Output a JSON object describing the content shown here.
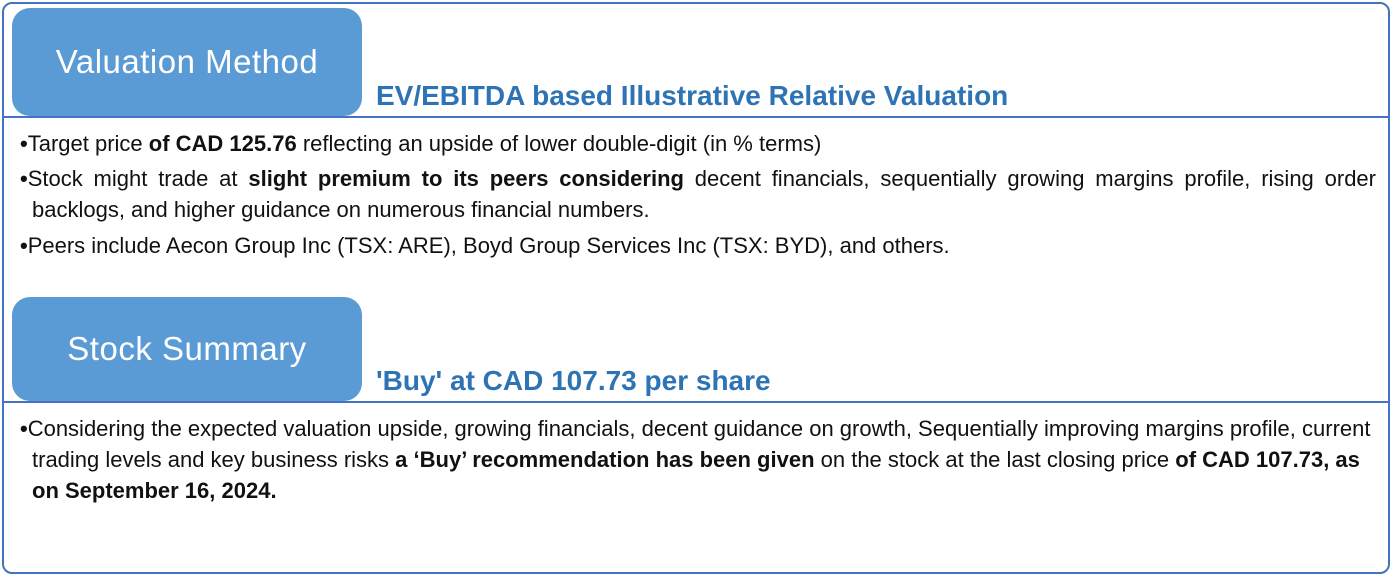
{
  "bullet_marker": "•",
  "colors": {
    "tab_fill": "#5B9BD5",
    "heading_text": "#2E74B5",
    "border": "#4472C4",
    "body_text": "#111111"
  },
  "sections": [
    {
      "tab_label": "Valuation Method",
      "subtitle": "EV/EBITDA based Illustrative Relative Valuation",
      "bullets": [
        {
          "justify": false,
          "segments": [
            {
              "text": "Target price ",
              "bold": false
            },
            {
              "text": "of CAD 125.76",
              "bold": true
            },
            {
              "text": " reflecting an upside of lower double-digit (in % terms)",
              "bold": false
            }
          ]
        },
        {
          "justify": true,
          "segments": [
            {
              "text": "Stock might trade at ",
              "bold": false
            },
            {
              "text": "slight premium to its peers considering",
              "bold": true
            },
            {
              "text": " decent financials, sequentially growing margins profile, rising order backlogs, and higher guidance on numerous financial numbers.",
              "bold": false
            }
          ]
        },
        {
          "justify": false,
          "segments": [
            {
              "text": "Peers include Aecon Group Inc (TSX: ARE), Boyd Group Services Inc (TSX: BYD), and others.",
              "bold": false
            }
          ]
        }
      ]
    },
    {
      "tab_label": "Stock Summary",
      "subtitle": "'Buy' at CAD 107.73 per share",
      "bullets": [
        {
          "justify": false,
          "segments": [
            {
              "text": "Considering the expected valuation upside, growing financials, decent guidance on growth, Sequentially improving margins profile, current trading levels and key business risks ",
              "bold": false
            },
            {
              "text": "a ‘Buy’ recommendation has been given",
              "bold": true
            },
            {
              "text": " on the stock at the last closing price ",
              "bold": false
            },
            {
              "text": "of CAD 107.73, as on September 16, 2024.",
              "bold": true
            }
          ]
        }
      ]
    }
  ]
}
